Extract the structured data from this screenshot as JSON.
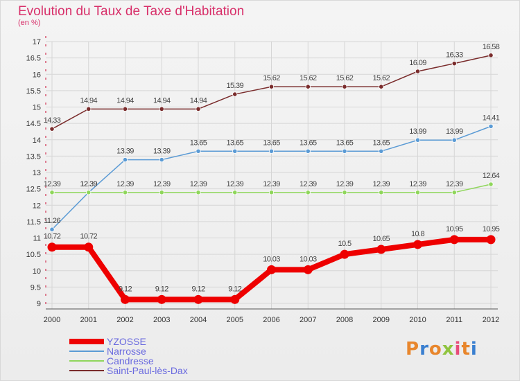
{
  "title": "Evolution du Taux de Taxe d'Habitation",
  "subtitle": "(en %)",
  "logo": "Proxiti",
  "chart_data": {
    "type": "line",
    "title": "Evolution du Taux de Taxe d'Habitation",
    "ylabel": "(en %)",
    "xlabel": "",
    "ylim": [
      9,
      17
    ],
    "yticks": [
      9,
      9.5,
      10,
      10.5,
      11,
      11.5,
      12,
      12.5,
      13,
      13.5,
      14,
      14.5,
      15,
      15.5,
      16,
      16.5,
      17
    ],
    "ytick_labels": [
      "9",
      "9.5",
      "10",
      "10.5",
      "11",
      "11.5",
      "12",
      "12.5",
      "13",
      "13.5",
      "14",
      "14.5",
      "15",
      "15.5",
      "16",
      "16.5",
      "17"
    ],
    "categories": [
      "2000",
      "2001",
      "2002",
      "2003",
      "2004",
      "2005",
      "2006",
      "2007",
      "2008",
      "2009",
      "2010",
      "2011",
      "2012"
    ],
    "grid": true,
    "legend_position": "bottom-left",
    "series": [
      {
        "name": "Saint-Paul-lès-Dax",
        "color": "#7a2c2c",
        "values": [
          14.33,
          14.94,
          14.94,
          14.94,
          14.94,
          15.39,
          15.62,
          15.62,
          15.62,
          15.62,
          16.09,
          16.33,
          16.58
        ],
        "labels": [
          "14.33",
          "14.94",
          "14.94",
          "14.94",
          "14.94",
          "15.39",
          "15.62",
          "15.62",
          "15.62",
          "15.62",
          "16.09",
          "16.33",
          "16.58"
        ]
      },
      {
        "name": "Narrosse",
        "color": "#5b9bd5",
        "values": [
          11.26,
          12.39,
          13.39,
          13.39,
          13.65,
          13.65,
          13.65,
          13.65,
          13.65,
          13.65,
          13.99,
          13.99,
          14.41
        ],
        "labels": [
          "11.26",
          "12.39",
          "13.39",
          "13.39",
          "13.65",
          "13.65",
          "13.65",
          "13.65",
          "13.65",
          "13.65",
          "13.99",
          "13.99",
          "14.41"
        ]
      },
      {
        "name": "Candresse",
        "color": "#8fd65b",
        "values": [
          12.39,
          12.39,
          12.39,
          12.39,
          12.39,
          12.39,
          12.39,
          12.39,
          12.39,
          12.39,
          12.39,
          12.39,
          12.64
        ],
        "labels": [
          "12.39",
          "12.39",
          "12.39",
          "12.39",
          "12.39",
          "12.39",
          "12.39",
          "12.39",
          "12.39",
          "12.39",
          "12.39",
          "12.39",
          "12.64"
        ]
      },
      {
        "name": "YZOSSE",
        "color": "#ee0000",
        "values": [
          10.72,
          10.72,
          9.12,
          9.12,
          9.12,
          9.12,
          10.03,
          10.03,
          10.5,
          10.65,
          10.8,
          10.95,
          10.95
        ],
        "labels": [
          "10.72",
          "10.72",
          "9.12",
          "9.12",
          "9.12",
          "9.12",
          "10.03",
          "10.03",
          "10.5",
          "10.65",
          "10.8",
          "10.95",
          "10.95"
        ]
      }
    ],
    "legend": [
      "YZOSSE",
      "Narrosse",
      "Candresse",
      "Saint-Paul-lès-Dax"
    ]
  }
}
